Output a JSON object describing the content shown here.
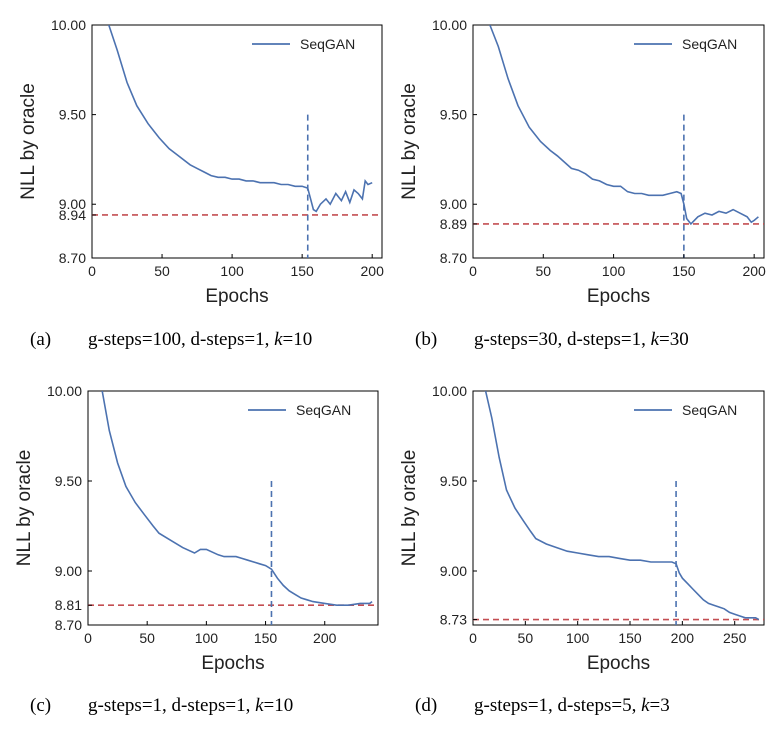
{
  "chart_data": [
    {
      "type": "line",
      "panel": "(a)",
      "caption_main": "g-steps=100, d-steps=1, ",
      "caption_k": "k",
      "caption_kval": "=10",
      "xlabel": "Epochs",
      "ylabel": "NLL by oracle",
      "xlim": [
        0,
        207
      ],
      "ylim": [
        8.7,
        10.0
      ],
      "xticks": [
        "0",
        "50",
        "100",
        "150",
        "200"
      ],
      "yticks": [
        "8.70",
        "8.94",
        "9.00",
        "9.50",
        "10.00"
      ],
      "xtick_values": [
        0,
        50,
        100,
        150,
        200
      ],
      "ytick_values": [
        8.7,
        8.94,
        9.0,
        9.5,
        10.0
      ],
      "hline": 8.94,
      "vline": {
        "x": 154,
        "y_top": 9.5
      },
      "legend": "top-right",
      "grid": false,
      "series": [
        {
          "name": "SeqGAN",
          "color": "#4c72b0",
          "x": [
            12,
            18,
            25,
            32,
            40,
            48,
            55,
            60,
            70,
            75,
            80,
            85,
            90,
            95,
            100,
            105,
            110,
            115,
            120,
            125,
            130,
            135,
            140,
            145,
            150,
            154,
            156,
            158,
            160,
            163,
            167,
            170,
            174,
            178,
            181,
            184,
            187,
            190,
            193,
            195,
            197,
            200
          ],
          "y": [
            10.0,
            9.86,
            9.68,
            9.55,
            9.45,
            9.37,
            9.31,
            9.28,
            9.22,
            9.2,
            9.18,
            9.16,
            9.15,
            9.15,
            9.14,
            9.14,
            9.13,
            9.13,
            9.12,
            9.12,
            9.12,
            9.11,
            9.11,
            9.1,
            9.1,
            9.09,
            9.03,
            8.97,
            8.96,
            9.0,
            9.03,
            9.0,
            9.06,
            9.02,
            9.07,
            9.01,
            9.08,
            9.06,
            9.03,
            9.13,
            9.11,
            9.12
          ]
        }
      ],
      "legend_label": "SeqGAN"
    },
    {
      "type": "line",
      "panel": "(b)",
      "caption_main": "g-steps=30, d-steps=1, ",
      "caption_k": "k",
      "caption_kval": "=30",
      "xlabel": "Epochs",
      "ylabel": "NLL by oracle",
      "xlim": [
        0,
        207
      ],
      "ylim": [
        8.7,
        10.0
      ],
      "xticks": [
        "0",
        "50",
        "100",
        "150",
        "200"
      ],
      "yticks": [
        "8.70",
        "8.89",
        "9.00",
        "9.50",
        "10.00"
      ],
      "xtick_values": [
        0,
        50,
        100,
        150,
        200
      ],
      "ytick_values": [
        8.7,
        8.89,
        9.0,
        9.5,
        10.0
      ],
      "hline": 8.89,
      "vline": {
        "x": 150,
        "y_top": 9.5
      },
      "legend": "top-right",
      "grid": false,
      "series": [
        {
          "name": "SeqGAN",
          "color": "#4c72b0",
          "x": [
            12,
            18,
            25,
            32,
            40,
            48,
            55,
            60,
            70,
            75,
            80,
            85,
            90,
            95,
            100,
            105,
            110,
            115,
            120,
            125,
            130,
            135,
            140,
            145,
            148,
            150,
            152,
            155,
            160,
            165,
            170,
            175,
            180,
            185,
            190,
            195,
            198,
            200,
            203
          ],
          "y": [
            10.0,
            9.88,
            9.7,
            9.55,
            9.43,
            9.35,
            9.3,
            9.27,
            9.2,
            9.19,
            9.17,
            9.14,
            9.13,
            9.11,
            9.1,
            9.1,
            9.07,
            9.06,
            9.06,
            9.05,
            9.05,
            9.05,
            9.06,
            9.07,
            9.06,
            9.0,
            8.92,
            8.89,
            8.93,
            8.95,
            8.94,
            8.96,
            8.95,
            8.97,
            8.95,
            8.93,
            8.9,
            8.91,
            8.93
          ]
        }
      ],
      "legend_label": "SeqGAN"
    },
    {
      "type": "line",
      "panel": "(c)",
      "caption_main": "g-steps=1, d-steps=1, ",
      "caption_k": "k",
      "caption_kval": "=10",
      "xlabel": "Epochs",
      "ylabel": "NLL by oracle",
      "xlim": [
        0,
        245
      ],
      "ylim": [
        8.7,
        10.0
      ],
      "xticks": [
        "0",
        "50",
        "100",
        "150",
        "200"
      ],
      "yticks": [
        "8.70",
        "8.81",
        "9.00",
        "9.50",
        "10.00"
      ],
      "xtick_values": [
        0,
        50,
        100,
        150,
        200
      ],
      "ytick_values": [
        8.7,
        8.81,
        9.0,
        9.5,
        10.0
      ],
      "hline": 8.81,
      "vline": {
        "x": 155,
        "y_top": 9.5
      },
      "legend": "top-right",
      "grid": false,
      "series": [
        {
          "name": "SeqGAN",
          "color": "#4c72b0",
          "x": [
            12,
            18,
            25,
            32,
            40,
            48,
            55,
            60,
            70,
            80,
            90,
            95,
            100,
            110,
            115,
            120,
            125,
            130,
            135,
            140,
            145,
            150,
            155,
            160,
            165,
            170,
            175,
            180,
            185,
            190,
            200,
            210,
            220,
            230,
            238,
            240
          ],
          "y": [
            10.0,
            9.78,
            9.6,
            9.47,
            9.38,
            9.31,
            9.25,
            9.21,
            9.17,
            9.13,
            9.1,
            9.12,
            9.12,
            9.09,
            9.08,
            9.08,
            9.08,
            9.07,
            9.06,
            9.05,
            9.04,
            9.03,
            9.01,
            8.96,
            8.92,
            8.89,
            8.87,
            8.85,
            8.84,
            8.83,
            8.82,
            8.81,
            8.81,
            8.82,
            8.82,
            8.83
          ]
        }
      ],
      "legend_label": "SeqGAN"
    },
    {
      "type": "line",
      "panel": "(d)",
      "caption_main": "g-steps=1, d-steps=5, ",
      "caption_k": "k",
      "caption_kval": "=3",
      "xlabel": "Epochs",
      "ylabel": "NLL by oracle",
      "xlim": [
        0,
        278
      ],
      "ylim": [
        8.7,
        10.0
      ],
      "xticks": [
        "0",
        "50",
        "100",
        "150",
        "200",
        "250"
      ],
      "yticks": [
        "8.73",
        "9.00",
        "9.50",
        "10.00"
      ],
      "xtick_values": [
        0,
        50,
        100,
        150,
        200,
        250
      ],
      "ytick_values": [
        8.73,
        9.0,
        9.5,
        10.0
      ],
      "hline": 8.73,
      "vline": {
        "x": 194,
        "y_top": 9.5
      },
      "legend": "top-right",
      "grid": false,
      "series": [
        {
          "name": "SeqGAN",
          "color": "#4c72b0",
          "x": [
            12,
            18,
            25,
            32,
            40,
            48,
            55,
            60,
            70,
            80,
            90,
            100,
            110,
            120,
            130,
            140,
            150,
            160,
            170,
            180,
            190,
            194,
            197,
            200,
            205,
            210,
            215,
            220,
            225,
            230,
            235,
            240,
            245,
            250,
            255,
            260,
            265,
            270,
            273
          ],
          "y": [
            10.0,
            9.85,
            9.63,
            9.45,
            9.35,
            9.28,
            9.22,
            9.18,
            9.15,
            9.13,
            9.11,
            9.1,
            9.09,
            9.08,
            9.08,
            9.07,
            9.06,
            9.06,
            9.05,
            9.05,
            9.05,
            9.04,
            8.99,
            8.96,
            8.93,
            8.9,
            8.87,
            8.84,
            8.82,
            8.81,
            8.8,
            8.79,
            8.77,
            8.76,
            8.75,
            8.74,
            8.74,
            8.74,
            8.73
          ]
        }
      ],
      "legend_label": "SeqGAN"
    }
  ]
}
